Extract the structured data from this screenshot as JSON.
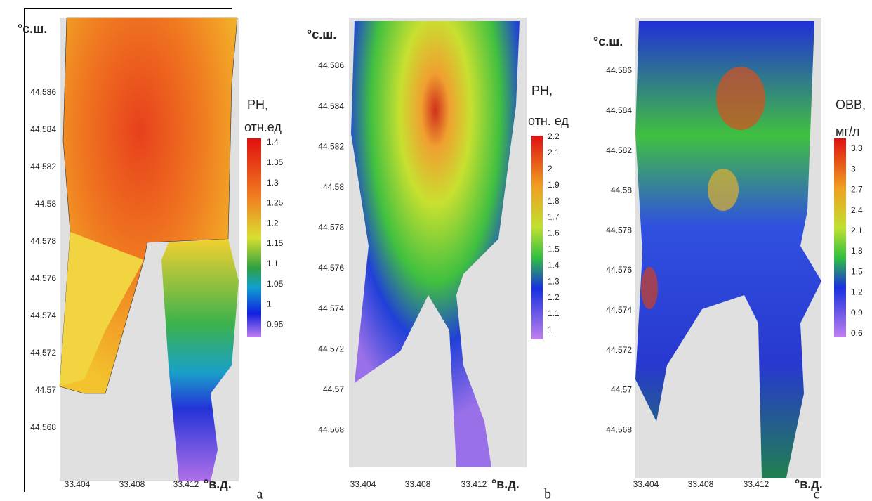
{
  "panels": [
    {
      "label": "a",
      "y_axis_label": "°с.ш.",
      "x_axis_label": "°в.д.",
      "yticks": [
        "44.586",
        "44.584",
        "44.582",
        "44.58",
        "44.578",
        "44.576",
        "44.574",
        "44.572",
        "44.57",
        "44.568"
      ],
      "xticks": [
        "33.404",
        "33.408",
        "33.412"
      ],
      "colorbar_title": [
        "РН,",
        "отн.ед"
      ],
      "colorbar_ticks": [
        "1.4",
        "1.35",
        "1.3",
        "1.25",
        "1.2",
        "1.15",
        "1.1",
        "1.05",
        "1",
        "0.95"
      ]
    },
    {
      "label": "b",
      "y_axis_label": "°с.ш.",
      "x_axis_label": "°в.д.",
      "yticks": [
        "44.586",
        "44.584",
        "44.582",
        "44.58",
        "44.578",
        "44.576",
        "44.574",
        "44.572",
        "44.57",
        "44.568"
      ],
      "xticks": [
        "33.404",
        "33.408",
        "33.412"
      ],
      "colorbar_title": [
        "РН,",
        "отн. ед"
      ],
      "colorbar_ticks": [
        "2.2",
        "2.1",
        "2",
        "1.9",
        "1.8",
        "1.7",
        "1.6",
        "1.5",
        "1.4",
        "1.3",
        "1.2",
        "1.1",
        "1"
      ]
    },
    {
      "label": "c",
      "y_axis_label": "°с.ш.",
      "x_axis_label": "°в.д.",
      "yticks": [
        "44.586",
        "44.584",
        "44.582",
        "44.58",
        "44.578",
        "44.576",
        "44.574",
        "44.572",
        "44.57",
        "44.568"
      ],
      "xticks": [
        "33.404",
        "33.408",
        "33.412"
      ],
      "colorbar_title": [
        "ОВВ,",
        "мг/л"
      ],
      "colorbar_ticks": [
        "3.3",
        "3",
        "2.7",
        "2.4",
        "2.1",
        "1.8",
        "1.5",
        "1.2",
        "0.9",
        "0.6"
      ]
    }
  ]
}
